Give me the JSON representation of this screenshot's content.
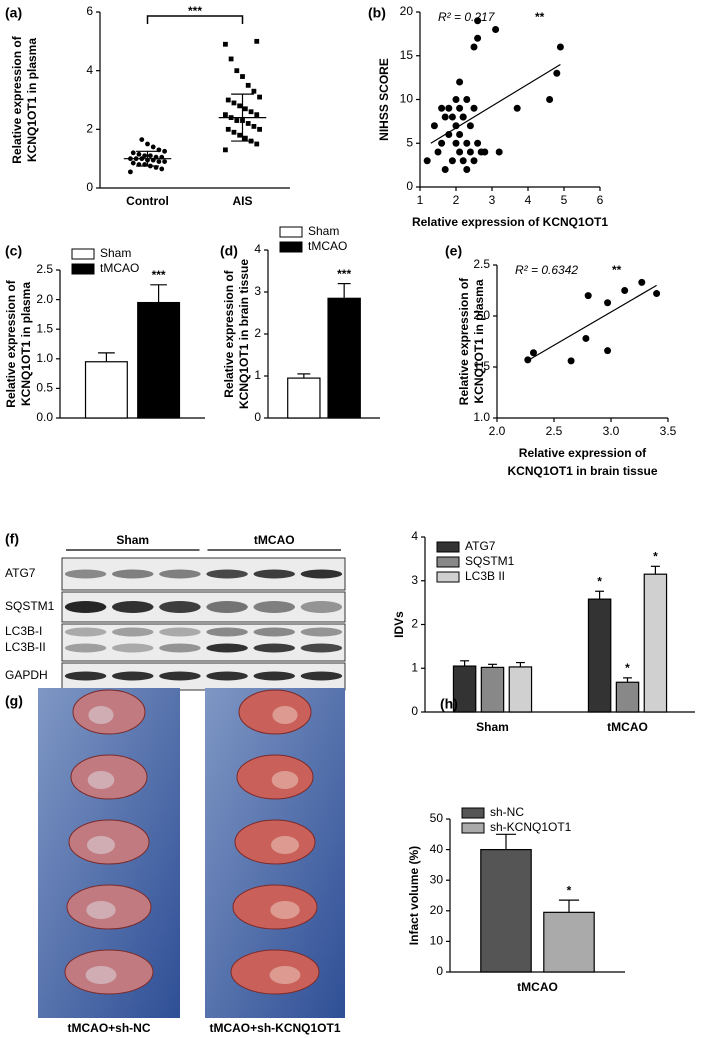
{
  "chart_data": [
    {
      "panel": "(a)",
      "type": "strip",
      "categories": [
        "Control",
        "AIS"
      ],
      "values": [
        [
          0.55,
          0.65,
          0.7,
          0.75,
          0.8,
          0.8,
          0.85,
          0.9,
          0.9,
          0.95,
          0.95,
          1.0,
          1.0,
          1.0,
          1.05,
          1.05,
          1.1,
          1.1,
          1.15,
          1.2,
          1.25,
          1.3,
          1.4,
          1.5,
          1.65
        ],
        [
          1.3,
          1.5,
          1.6,
          1.7,
          1.8,
          1.9,
          2.0,
          2.0,
          2.1,
          2.2,
          2.3,
          2.3,
          2.4,
          2.5,
          2.5,
          2.6,
          2.7,
          2.8,
          2.9,
          3.0,
          3.1,
          3.3,
          3.5,
          3.8,
          4.0,
          4.4,
          4.9,
          5.0
        ]
      ],
      "means": [
        1.0,
        2.4
      ],
      "sds": [
        0.25,
        0.8
      ],
      "significance": "***",
      "ylabel": [
        "Relative expression of",
        "KCNQ1OT1 in plasma"
      ],
      "ylim": [
        0,
        6
      ],
      "yticks": [
        0,
        2,
        4,
        6
      ]
    },
    {
      "panel": "(b)",
      "type": "scatter",
      "x": [
        1.2,
        1.4,
        1.5,
        1.6,
        1.6,
        1.7,
        1.7,
        1.8,
        1.8,
        1.9,
        1.9,
        2.0,
        2.0,
        2.0,
        2.1,
        2.1,
        2.1,
        2.2,
        2.2,
        2.3,
        2.3,
        2.3,
        2.4,
        2.4,
        2.5,
        2.5,
        2.6,
        2.6,
        2.7,
        2.8,
        2.1,
        2.5,
        2.6,
        2.2,
        3.1,
        3.2,
        3.7,
        4.6,
        4.8,
        4.9
      ],
      "y": [
        3,
        7,
        4,
        9,
        5,
        8,
        2,
        6,
        9,
        3,
        8,
        5,
        10,
        7,
        4,
        9,
        6,
        3,
        8,
        5,
        10,
        2,
        7,
        4,
        9,
        3,
        17,
        5,
        4,
        4,
        12,
        16,
        19,
        8,
        18,
        4,
        9,
        10,
        13,
        16
      ],
      "trend": {
        "x": [
          1.3,
          4.9
        ],
        "y": [
          5,
          14
        ]
      },
      "annotation": "R² = 0.217",
      "significance": "**",
      "xlabel": [
        "Relative expression of KCNQ1OT1"
      ],
      "ylabel": [
        "NIHSS SCORE"
      ],
      "xlim": [
        1,
        6
      ],
      "xticks": [
        1,
        2,
        3,
        4,
        5,
        6
      ],
      "ylim": [
        0,
        20
      ],
      "yticks": [
        0,
        5,
        10,
        15,
        20
      ]
    },
    {
      "panel": "(c)",
      "type": "bar",
      "series": [
        {
          "name": "Sham",
          "color": "#ffffff",
          "values": [
            0.95
          ],
          "errors": [
            0.15
          ],
          "significance": [
            null
          ]
        },
        {
          "name": "tMCAO",
          "color": "#000000",
          "values": [
            1.95
          ],
          "errors": [
            0.3
          ],
          "significance": [
            "***"
          ]
        }
      ],
      "ylabel": [
        "Relative expression of",
        "KCNQ1OT1 in plasma"
      ],
      "ylim": [
        0,
        2.5
      ],
      "yticks": [
        {
          "value": 0,
          "label": "0.0"
        },
        0.5,
        {
          "value": 1,
          "label": "1.0"
        },
        1.5,
        {
          "value": 2,
          "label": "2.0"
        },
        2.5
      ],
      "legend": "upper left"
    },
    {
      "panel": "(d)",
      "type": "bar",
      "series": [
        {
          "name": "Sham",
          "color": "#ffffff",
          "values": [
            0.95
          ],
          "errors": [
            0.1
          ],
          "significance": [
            null
          ]
        },
        {
          "name": "tMCAO",
          "color": "#000000",
          "values": [
            2.85
          ],
          "errors": [
            0.35
          ],
          "significance": [
            "***"
          ]
        }
      ],
      "ylabel": [
        "Relative expression of",
        "KCNQ1OT1 in brain tissue"
      ],
      "ylim": [
        0,
        4
      ],
      "yticks": [
        0,
        1,
        2,
        3,
        4
      ],
      "legend": "upper left"
    },
    {
      "panel": "(e)",
      "type": "scatter",
      "x": [
        2.27,
        2.32,
        2.65,
        2.78,
        2.8,
        2.97,
        2.97,
        3.12,
        3.27,
        3.4
      ],
      "y": [
        1.57,
        1.64,
        1.56,
        1.78,
        2.2,
        2.13,
        1.66,
        2.25,
        2.33,
        2.22
      ],
      "trend": {
        "x": [
          2.25,
          3.4
        ],
        "y": [
          1.55,
          2.3
        ]
      },
      "annotation": "R² = 0.6342",
      "significance": "**",
      "xlabel": [
        "Relative expression of",
        "KCNQ1OT1  in brain tissue"
      ],
      "ylabel": [
        "Relative expression of",
        "KCNQ1OT1 in plasma"
      ],
      "xlim": [
        2,
        3.5
      ],
      "xticks": [
        {
          "value": 2,
          "label": "2.0"
        },
        2.5,
        {
          "value": 3,
          "label": "3.0"
        },
        3.5
      ],
      "ylim": [
        1,
        2.5
      ],
      "yticks": [
        {
          "value": 1,
          "label": "1.0"
        },
        1.5,
        {
          "value": 2,
          "label": "2.0"
        },
        2.5
      ]
    },
    {
      "type": "bar",
      "categories": [
        "Sham",
        "tMCAO"
      ],
      "series": [
        {
          "name": "ATG7",
          "color": "#333333",
          "values": [
            1.05,
            2.58
          ],
          "errors": [
            0.12,
            0.18
          ],
          "significance": [
            null,
            "*"
          ]
        },
        {
          "name": "SQSTM1",
          "color": "#888888",
          "values": [
            1.02,
            0.68
          ],
          "errors": [
            0.07,
            0.1
          ],
          "significance": [
            null,
            "*"
          ]
        },
        {
          "name": "LC3B II",
          "color": "#d0d0d0",
          "values": [
            1.03,
            3.15
          ],
          "errors": [
            0.1,
            0.18
          ],
          "significance": [
            null,
            "*"
          ]
        }
      ],
      "ylabel": [
        "IDVs"
      ],
      "ylim": [
        0,
        4
      ],
      "yticks": [
        0,
        1,
        2,
        3,
        4
      ],
      "legend": "upper left"
    },
    {
      "panel": "(h)",
      "type": "bar",
      "categories": [
        "tMCAO"
      ],
      "series": [
        {
          "name": "sh-NC",
          "color": "#555555",
          "values": [
            40
          ],
          "errors": [
            5
          ],
          "significance": [
            null
          ]
        },
        {
          "name": "sh-KCNQ1OT1",
          "color": "#aaaaaa",
          "values": [
            19.5
          ],
          "errors": [
            4
          ],
          "significance": [
            "*"
          ]
        }
      ],
      "ylabel": [
        "Infact volume (%)"
      ],
      "ylim": [
        0,
        50
      ],
      "yticks": [
        0,
        10,
        20,
        30,
        40,
        50
      ],
      "legend": "upper left"
    }
  ],
  "blot": {
    "panel": "(f)",
    "groups": [
      "Sham",
      "tMCAO"
    ],
    "rows": [
      "ATG7",
      "SQSTM1",
      "LC3B-I",
      "LC3B-II",
      "GAPDH"
    ]
  },
  "photos": {
    "panel": "(g)",
    "labels": [
      "tMCAO+sh-NC",
      "tMCAO+sh-KCNQ1OT1"
    ]
  }
}
